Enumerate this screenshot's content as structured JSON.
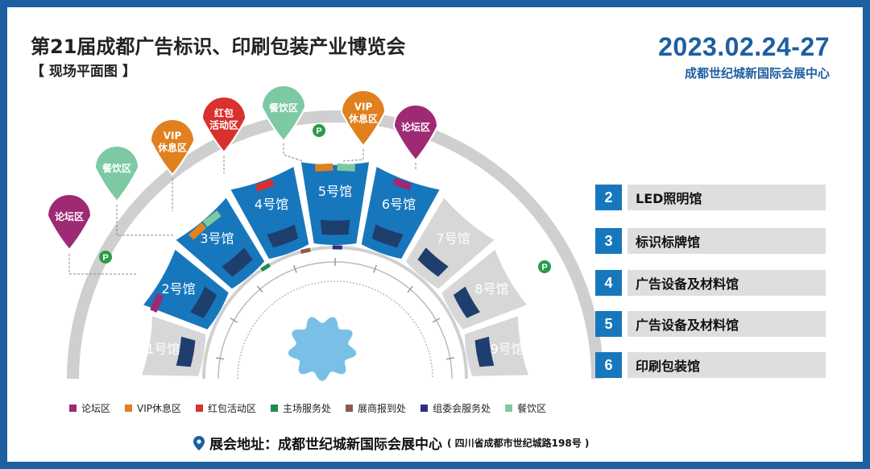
{
  "header": {
    "title": "第21届成都广告标识、印刷包装产业博览会",
    "subtitle": "【 现场平面图 】",
    "date": "2023.02.24-27",
    "venue": "成都世纪城新国际会展中心"
  },
  "map": {
    "halls": [
      {
        "label": "1号馆",
        "state": "inactive"
      },
      {
        "label": "2号馆",
        "state": "active"
      },
      {
        "label": "3号馆",
        "state": "active"
      },
      {
        "label": "4号馆",
        "state": "active"
      },
      {
        "label": "5号馆",
        "state": "active"
      },
      {
        "label": "6号馆",
        "state": "active"
      },
      {
        "label": "7号馆",
        "state": "inactive"
      },
      {
        "label": "8号馆",
        "state": "inactive"
      },
      {
        "label": "9号馆",
        "state": "inactive"
      }
    ],
    "pins": [
      {
        "label": "论坛区",
        "type": "forum"
      },
      {
        "label": "餐饮区",
        "type": "dining"
      },
      {
        "label": "VIP\n休息区",
        "type": "vip"
      },
      {
        "label": "红包\n活动区",
        "type": "redpacket"
      },
      {
        "label": "餐饮区",
        "type": "dining"
      },
      {
        "label": "VIP\n休息区",
        "type": "vip"
      },
      {
        "label": "论坛区",
        "type": "forum"
      }
    ],
    "parking_label": "P"
  },
  "hall_list": [
    {
      "number": "2",
      "name": "LED照明馆"
    },
    {
      "number": "3",
      "name": "标识标牌馆"
    },
    {
      "number": "4",
      "name": "广告设备及材料馆"
    },
    {
      "number": "5",
      "name": "广告设备及材料馆"
    },
    {
      "number": "6",
      "name": "印刷包装馆"
    }
  ],
  "legend": [
    {
      "label": "论坛区",
      "color": "#9e2a74"
    },
    {
      "label": "VIP休息区",
      "color": "#e0801e"
    },
    {
      "label": "红包活动区",
      "color": "#d8312e"
    },
    {
      "label": "主场服务处",
      "color": "#1a8e4b"
    },
    {
      "label": "展商报到处",
      "color": "#8e5a4a"
    },
    {
      "label": "组委会服务处",
      "color": "#2d2f7c"
    },
    {
      "label": "餐饮区",
      "color": "#7cc9a4"
    }
  ],
  "address": {
    "label": "展会地址：",
    "value": "成都世纪城新国际会展中心",
    "detail": "( 四川省成都市世纪城路198号 )",
    "pin_icon": "location-pin-icon"
  },
  "colors": {
    "primary": "#1d5fa0",
    "hall_active": "#1777bc",
    "hall_inactive": "#d7d7d7",
    "ring": "#cfcfcf",
    "dark_band": "#1e3f6e",
    "forum": "#9e2a74",
    "vip": "#e0801e",
    "redpacket": "#d8312e",
    "dining": "#7cc9a4",
    "parking": "#2a9a4a",
    "pool": "#79bfe6"
  }
}
